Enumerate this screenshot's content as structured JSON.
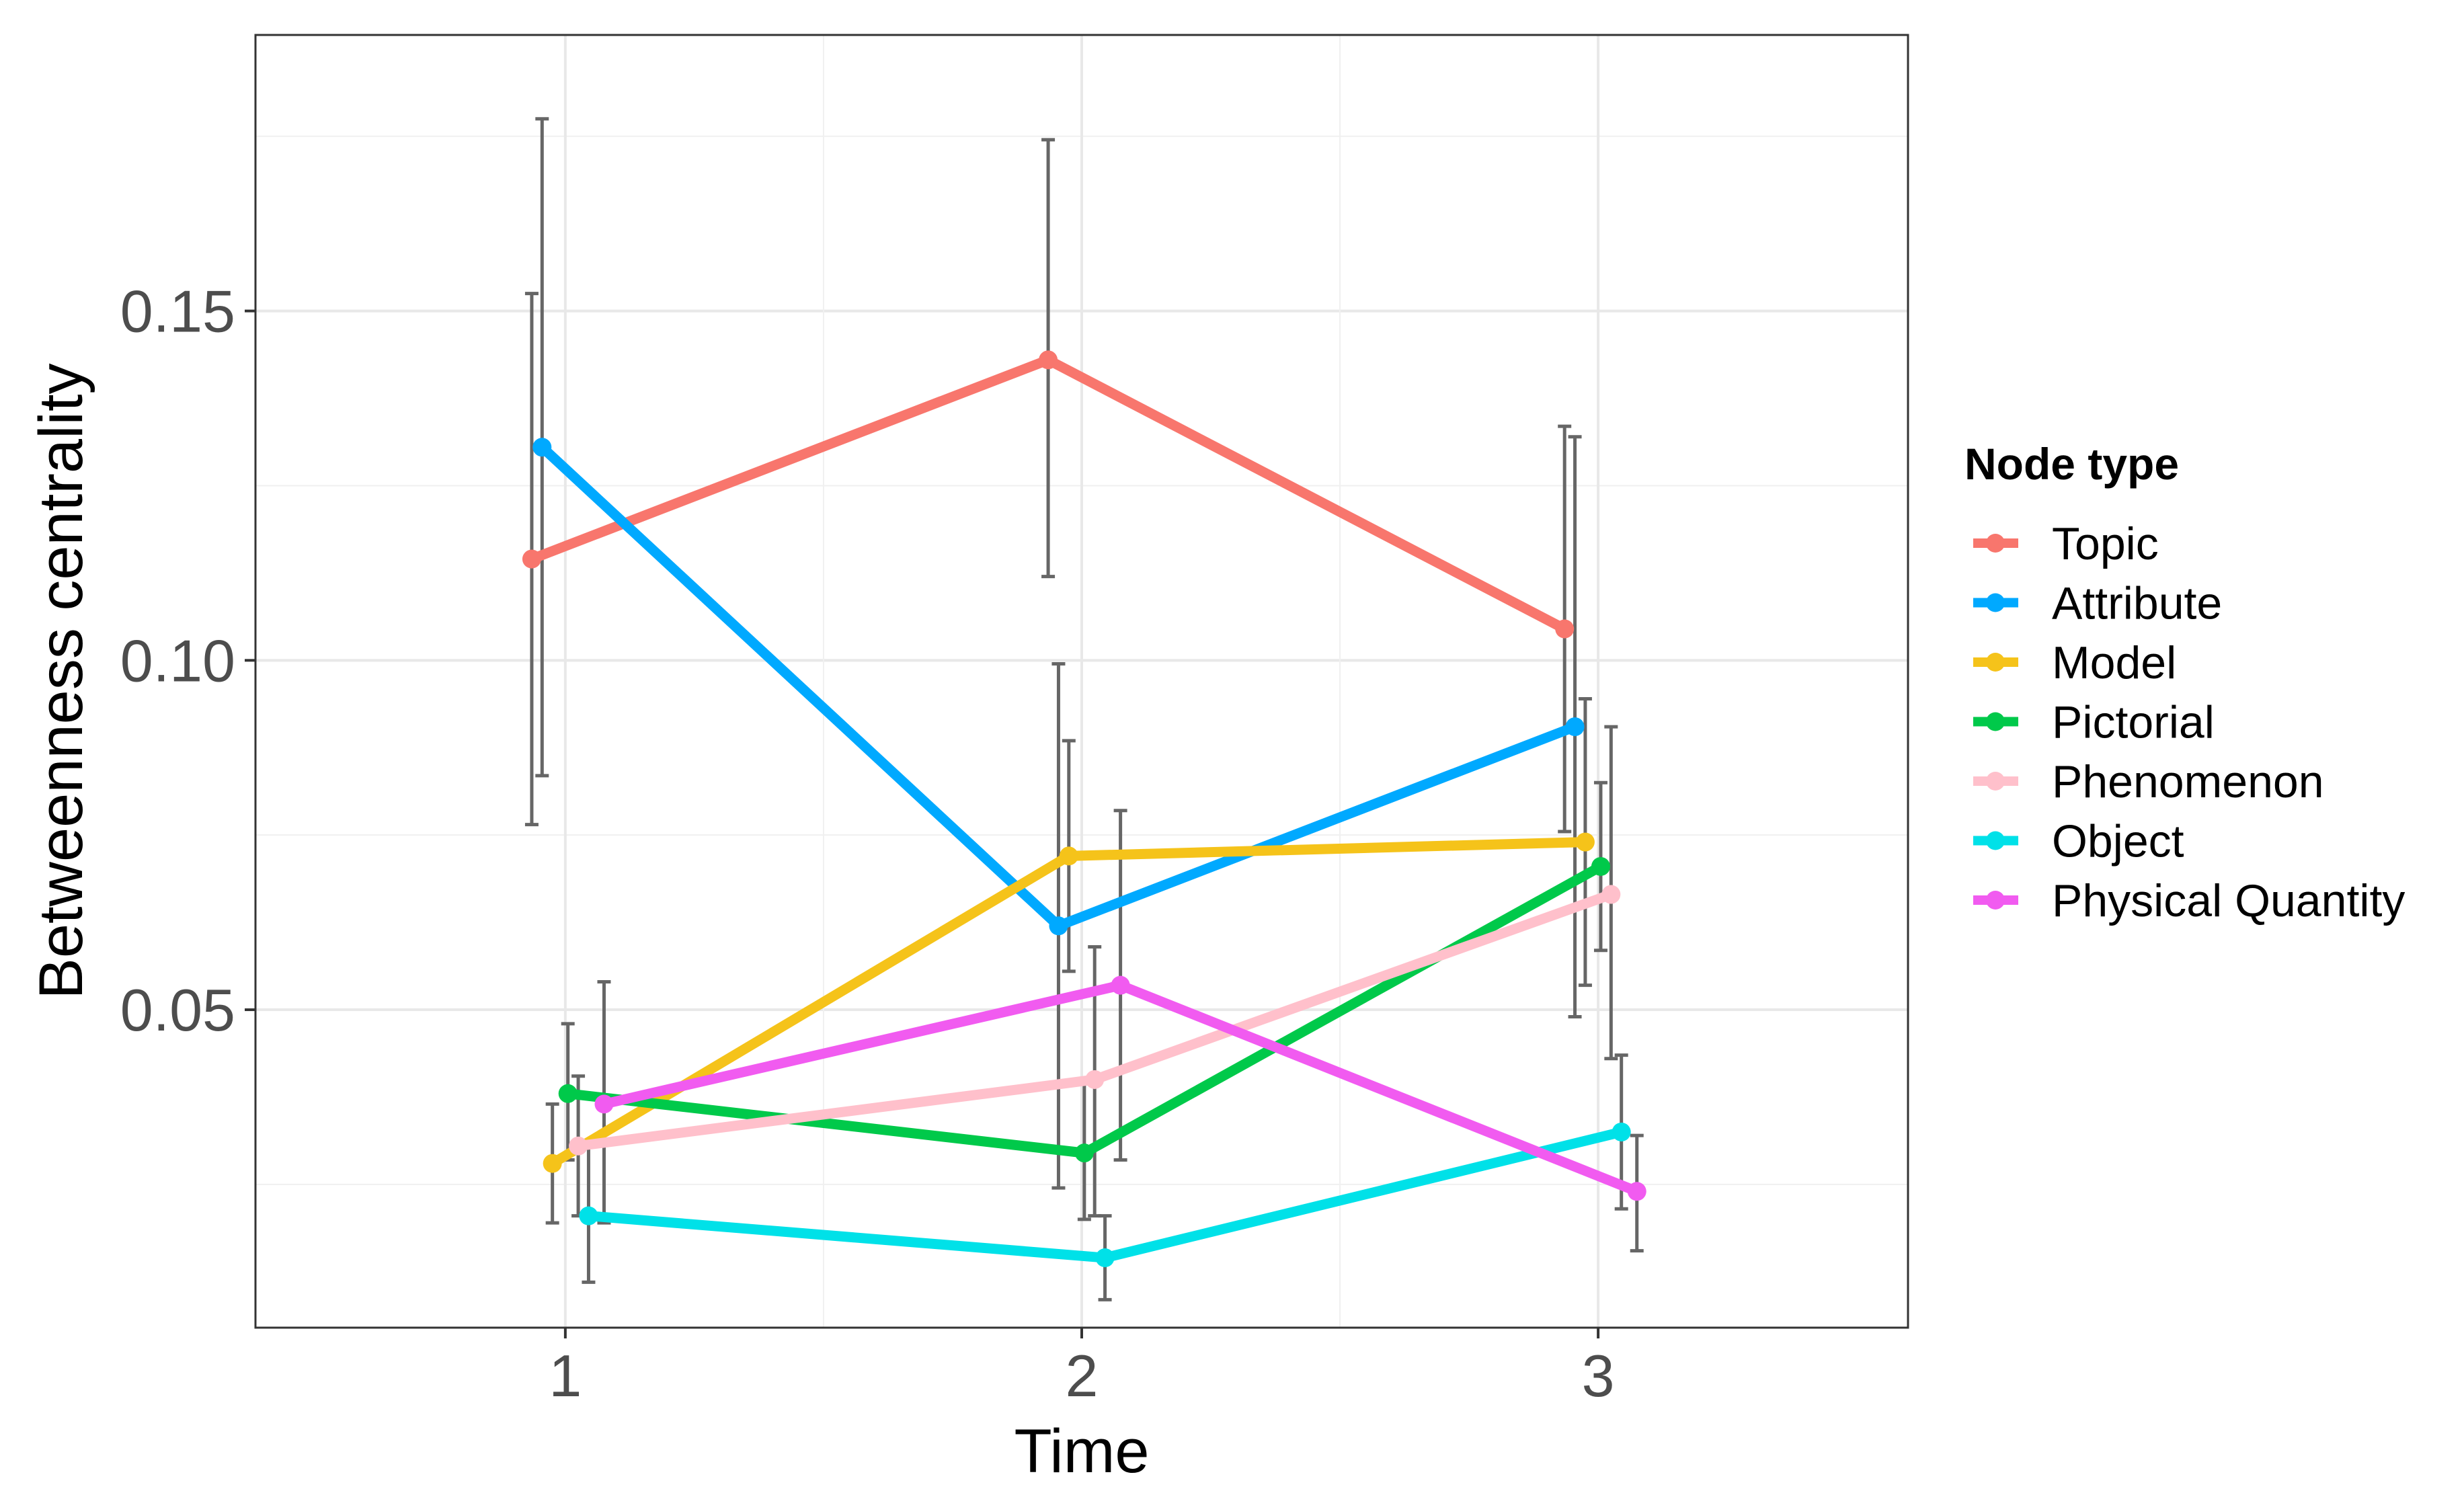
{
  "chart_data": {
    "type": "line",
    "title": "",
    "xlabel": "Time",
    "ylabel": "Betweenness centrality",
    "x": [
      1,
      2,
      3
    ],
    "xticks": [
      "1",
      "2",
      "3"
    ],
    "xlim": [
      0.4,
      3.6
    ],
    "ylim": [
      0.0045,
      0.1895
    ],
    "yticks": [
      {
        "value": 0.05,
        "label": "0.05"
      },
      {
        "value": 0.1,
        "label": "0.10"
      },
      {
        "value": 0.15,
        "label": "0.15"
      }
    ],
    "grid": true,
    "legend_title": "Node type",
    "legend_position": "right",
    "series": [
      {
        "name": "Topic",
        "color": "#F8766D",
        "values": [
          0.1145,
          0.143,
          0.1045
        ],
        "lower": [
          0.0765,
          0.112,
          0.0755
        ],
        "upper": [
          0.1525,
          0.1745,
          0.1335
        ]
      },
      {
        "name": "Attribute",
        "color": "#00A9FF",
        "values": [
          0.1305,
          0.062,
          0.0905
        ],
        "lower": [
          0.0835,
          0.0245,
          0.049
        ],
        "upper": [
          0.1775,
          0.0995,
          0.132
        ]
      },
      {
        "name": "Model",
        "color": "#F5C31A",
        "values": [
          0.028,
          0.072,
          0.074
        ],
        "lower": [
          0.0195,
          0.0555,
          0.0535
        ],
        "upper": [
          0.0365,
          0.0885,
          0.0945
        ]
      },
      {
        "name": "Pictorial",
        "color": "#00C94A",
        "values": [
          0.038,
          0.0295,
          0.0705
        ],
        "lower": [
          0.0285,
          0.02,
          0.0585
        ],
        "upper": [
          0.048,
          0.0395,
          0.0825
        ]
      },
      {
        "name": "Phenomenon",
        "color": "#FFC0CB",
        "values": [
          0.0305,
          0.04,
          0.0665
        ],
        "lower": [
          0.0205,
          0.0205,
          0.043
        ],
        "upper": [
          0.0405,
          0.059,
          0.0905
        ]
      },
      {
        "name": "Object",
        "color": "#00E1E8",
        "values": [
          0.0205,
          0.0145,
          0.0325
        ],
        "lower": [
          0.011,
          0.0085,
          0.0215
        ],
        "upper": [
          0.0305,
          0.0205,
          0.0435
        ]
      },
      {
        "name": "Physical Quantity",
        "color": "#F15BF0",
        "values": [
          0.0365,
          0.0535,
          0.024
        ],
        "lower": [
          0.0195,
          0.0285,
          0.0155
        ],
        "upper": [
          0.054,
          0.0785,
          0.032
        ]
      }
    ]
  }
}
